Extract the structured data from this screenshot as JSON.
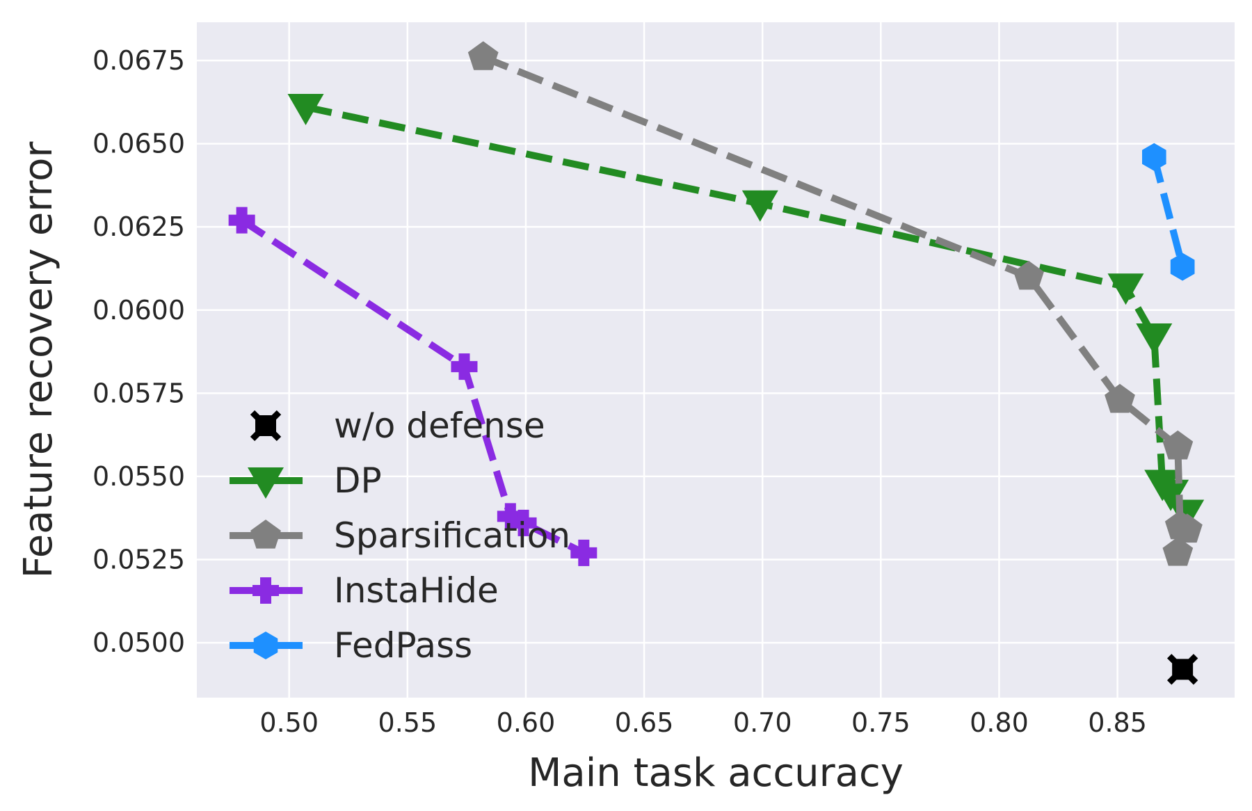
{
  "chart_data": {
    "type": "line",
    "xlabel": "Main task accuracy",
    "ylabel": "Feature recovery error",
    "xlim": [
      0.461,
      0.8995
    ],
    "ylim": [
      0.04835,
      0.06865
    ],
    "xticks": [
      0.5,
      0.55,
      0.6,
      0.65,
      0.7,
      0.75,
      0.8,
      0.85
    ],
    "xtick_labels": [
      "0.50",
      "0.55",
      "0.60",
      "0.65",
      "0.70",
      "0.75",
      "0.80",
      "0.85"
    ],
    "yticks": [
      0.05,
      0.0525,
      0.055,
      0.0575,
      0.06,
      0.0625,
      0.065,
      0.0675
    ],
    "ytick_labels": [
      "0.0500",
      "0.0525",
      "0.0550",
      "0.0575",
      "0.0600",
      "0.0625",
      "0.0650",
      "0.0675"
    ],
    "grid": true,
    "legend_position": "lower-left",
    "background": "#eaeaf2",
    "series": [
      {
        "name": "w/o defense",
        "color": "#000000",
        "marker": "x-square",
        "line": "none",
        "x": [
          0.8775
        ],
        "y": [
          0.0492
        ]
      },
      {
        "name": "DP",
        "color": "#228b22",
        "marker": "triangle-down",
        "line": "dashed",
        "x": [
          0.507,
          0.699,
          0.8535,
          0.8655,
          0.869,
          0.8725,
          0.879
        ],
        "y": [
          0.0661,
          0.0632,
          0.0607,
          0.0592,
          0.0548,
          0.0545,
          0.0539
        ]
      },
      {
        "name": "Sparsification",
        "color": "#808080",
        "marker": "pentagon",
        "line": "dashed",
        "x": [
          0.582,
          0.8125,
          0.851,
          0.8755,
          0.8765,
          0.8795,
          0.8755
        ],
        "y": [
          0.0676,
          0.061,
          0.0573,
          0.0559,
          0.0535,
          0.0534,
          0.0527
        ]
      },
      {
        "name": "InstaHide",
        "color": "#8a2be2",
        "marker": "plus",
        "line": "dashed",
        "x": [
          0.48,
          0.574,
          0.5935,
          0.599,
          0.6245
        ],
        "y": [
          0.0627,
          0.0583,
          0.0538,
          0.0536,
          0.0527
        ]
      },
      {
        "name": "FedPass",
        "color": "#1e90ff",
        "marker": "hexagon",
        "line": "dashed",
        "x": [
          0.8655,
          0.8775
        ],
        "y": [
          0.0646,
          0.0613
        ]
      }
    ]
  }
}
